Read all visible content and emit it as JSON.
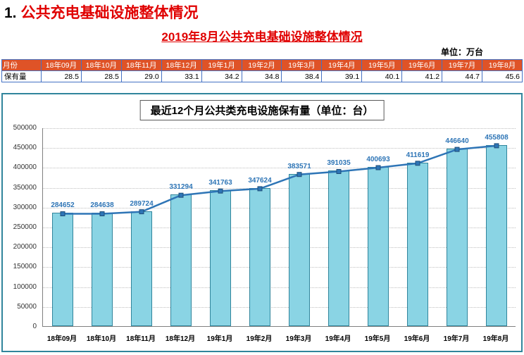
{
  "page": {
    "section_number": "1.",
    "section_title": "公共充电基础设施整体情况",
    "subtitle": "2019年8月公共充电基础设施整体情况",
    "unit_label": "单位：万台"
  },
  "table": {
    "row1_label": "月份",
    "row2_label": "保有量",
    "months": [
      "18年09月",
      "18年10月",
      "18年11月",
      "18年12月",
      "19年1月",
      "19年2月",
      "19年3月",
      "19年4月",
      "19年5月",
      "19年6月",
      "19年7月",
      "19年8月"
    ],
    "values": [
      "28.5",
      "28.5",
      "29.0",
      "33.1",
      "34.2",
      "34.8",
      "38.4",
      "39.1",
      "40.1",
      "41.2",
      "44.7",
      "45.6"
    ]
  },
  "chart_data": {
    "type": "bar",
    "overlay": "line",
    "title": "最近12个月公共类充电设施保有量（单位：台）",
    "categories": [
      "18年09月",
      "18年10月",
      "18年11月",
      "18年12月",
      "19年1月",
      "19年2月",
      "19年3月",
      "19年4月",
      "19年5月",
      "19年6月",
      "19年7月",
      "19年8月"
    ],
    "values": [
      284652,
      284638,
      289724,
      331294,
      341763,
      347624,
      383571,
      391035,
      400693,
      411619,
      446640,
      455808
    ],
    "xlabel": "",
    "ylabel": "",
    "ylim": [
      0,
      500000
    ],
    "ytick_step": 50000,
    "grid": true,
    "legend": "none",
    "data_labels": true
  },
  "colors": {
    "title_red": "#E00000",
    "table_header_bg": "#DF5327",
    "table_border": "#4472C4",
    "chart_border": "#31859C",
    "bar_fill": "#8AD4E4",
    "bar_border": "#31859C",
    "line_color": "#2E75B6",
    "marker_fill": "#2E75B6",
    "marker_stroke": "#1F4E79",
    "data_label_color": "#2E75B6",
    "grid_color": "#BFBFBF",
    "axis_color": "#808080"
  }
}
